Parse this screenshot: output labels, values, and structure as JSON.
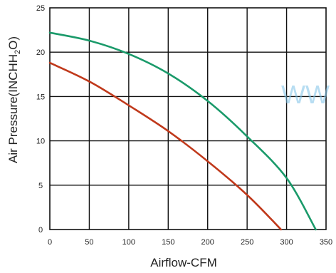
{
  "chart_data": {
    "type": "line",
    "xlabel": "Airflow-CFM",
    "ylabel": "Air Pressure(INCHH",
    "ylabel_sub": "2",
    "ylabel_tail": "O)",
    "xlim": [
      0,
      350
    ],
    "ylim": [
      0,
      25
    ],
    "x_ticks": [
      0,
      50,
      100,
      150,
      200,
      250,
      300,
      350
    ],
    "y_ticks": [
      0,
      5,
      10,
      15,
      20,
      25
    ],
    "grid": true,
    "series": [
      {
        "color": "#1a9a6a",
        "points": [
          [
            0,
            22.2
          ],
          [
            50,
            21.3
          ],
          [
            100,
            19.8
          ],
          [
            150,
            17.6
          ],
          [
            200,
            14.5
          ],
          [
            250,
            10.5
          ],
          [
            300,
            5.8
          ],
          [
            337,
            0
          ]
        ]
      },
      {
        "color": "#c0391b",
        "points": [
          [
            0,
            18.8
          ],
          [
            50,
            16.7
          ],
          [
            100,
            14.0
          ],
          [
            150,
            11.1
          ],
          [
            200,
            7.7
          ],
          [
            250,
            3.9
          ],
          [
            293,
            0
          ]
        ]
      }
    ]
  },
  "watermark": "WW"
}
